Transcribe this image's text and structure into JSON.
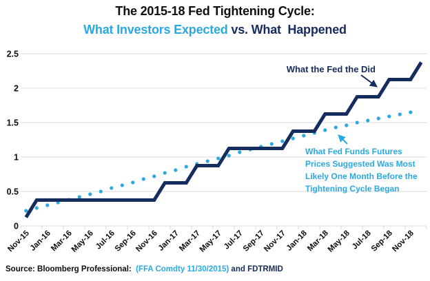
{
  "header": {
    "title": "The 2015-18 Fed Tightening Cycle:",
    "subtitle_expected": "What Investors Expected",
    "subtitle_rest": " vs. What  Happened"
  },
  "annotations": {
    "fed_label": "What the Fed the Did",
    "futures_label": "What Fed Funds Futures\nPrices Suggested Was Most\nLikely One Month Before the\nTightening Cycle Began"
  },
  "source": {
    "prefix": "Source: Bloomberg Professional:  ",
    "ffa": "(FFA Comdty 11/30/2015)",
    "suffix": " and FDTRMID"
  },
  "colors": {
    "navy": "#152c5e",
    "cyan": "#29a9e2",
    "grid": "#d9d9d9",
    "text": "#0d0d0d"
  },
  "chart_data": {
    "type": "line",
    "title": "The 2015-18 Fed Tightening Cycle: What Investors Expected vs. What Happened",
    "xlabel": "",
    "ylabel": "",
    "ylim": [
      0,
      2.5
    ],
    "yticks": [
      0,
      0.5,
      1,
      1.5,
      2,
      2.5
    ],
    "ytick_labels": [
      "0",
      "0.5",
      "1",
      "1.5",
      "2",
      "2.5"
    ],
    "grid": true,
    "xlabel_every": 2,
    "legend_position": "annotations-on-chart",
    "categories": [
      "Nov-15",
      "Dec-15",
      "Jan-16",
      "Feb-16",
      "Mar-16",
      "Apr-16",
      "May-16",
      "Jun-16",
      "Jul-16",
      "Aug-16",
      "Sep-16",
      "Oct-16",
      "Nov-16",
      "Dec-16",
      "Jan-17",
      "Feb-17",
      "Mar-17",
      "Apr-17",
      "May-17",
      "Jun-17",
      "Jul-17",
      "Aug-17",
      "Sep-17",
      "Oct-17",
      "Nov-17",
      "Dec-17",
      "Jan-18",
      "Feb-18",
      "Mar-18",
      "Apr-18",
      "May-18",
      "Jun-18",
      "Jul-18",
      "Aug-18",
      "Sep-18",
      "Oct-18",
      "Nov-18",
      "Dec-18"
    ],
    "series": [
      {
        "name": "What the Fed the Did (FDTRMID, fed funds target midpoint)",
        "style": "solid-step-line",
        "color": "#152c5e",
        "values": [
          0.125,
          0.375,
          0.375,
          0.375,
          0.375,
          0.375,
          0.375,
          0.375,
          0.375,
          0.375,
          0.375,
          0.375,
          0.375,
          0.625,
          0.625,
          0.625,
          0.875,
          0.875,
          0.875,
          1.125,
          1.125,
          1.125,
          1.125,
          1.125,
          1.125,
          1.375,
          1.375,
          1.375,
          1.625,
          1.625,
          1.625,
          1.875,
          1.875,
          1.875,
          2.125,
          2.125,
          2.125,
          2.375
        ]
      },
      {
        "name": "What Fed Funds Futures Prices Suggested Was Most Likely One Month Before the Tightening Cycle Began (FFA Comdty 11/30/2015)",
        "style": "dotted",
        "color": "#29a9e2",
        "values": [
          0.22,
          0.26,
          0.3,
          0.34,
          0.38,
          0.42,
          0.46,
          0.5,
          0.55,
          0.59,
          0.63,
          0.68,
          0.72,
          0.77,
          0.81,
          0.86,
          0.9,
          0.94,
          0.98,
          1.02,
          1.07,
          1.11,
          1.15,
          1.19,
          1.23,
          1.27,
          1.31,
          1.35,
          1.39,
          1.43,
          1.46,
          1.5,
          1.53,
          1.56,
          1.59,
          1.62,
          1.65
        ]
      }
    ]
  }
}
